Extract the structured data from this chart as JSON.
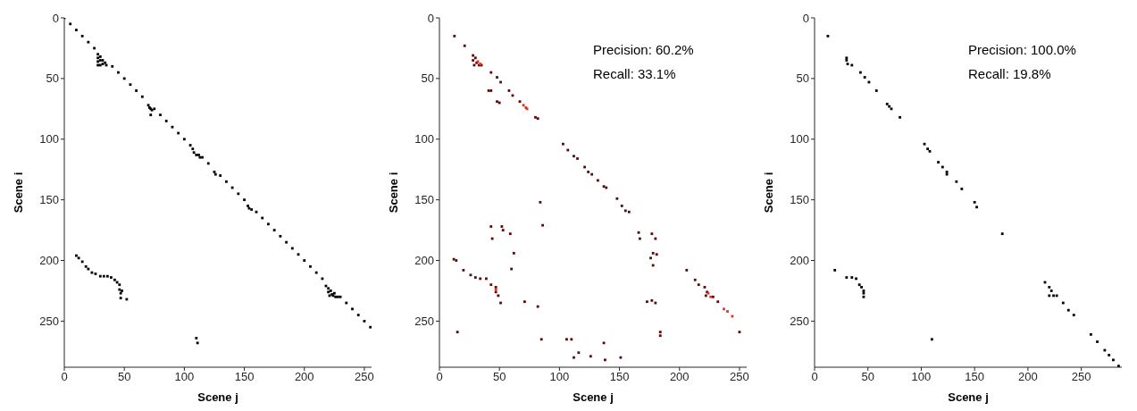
{
  "chart_data": [
    {
      "type": "scatter",
      "xlabel": "Scene j",
      "ylabel": "Scene i",
      "xlim": [
        0,
        256
      ],
      "ylim": [
        288,
        0
      ],
      "xticks": [
        0,
        50,
        100,
        150,
        200,
        250
      ],
      "yticks": [
        0,
        50,
        100,
        150,
        200,
        250
      ],
      "marker": "square",
      "series": [
        {
          "color": "#000000",
          "x": [
            0,
            5,
            10,
            15,
            20,
            25,
            40,
            45,
            50,
            55,
            60,
            65,
            75,
            80,
            85,
            90,
            95,
            100,
            105,
            115,
            120,
            130,
            135,
            140,
            145,
            150,
            160,
            165,
            170,
            175,
            180,
            185,
            190,
            195,
            200,
            205,
            210,
            215,
            230,
            235,
            240,
            245,
            250,
            255,
            28,
            28,
            28,
            30,
            30,
            32,
            32,
            34,
            35,
            30,
            28,
            70,
            71,
            72,
            73,
            72,
            107,
            108,
            110,
            112,
            113,
            125,
            126,
            153,
            154,
            156,
            218,
            220,
            220,
            222,
            223,
            225,
            226,
            228,
            221,
            224,
            10,
            12,
            15,
            18,
            20,
            23,
            26,
            30,
            33,
            36,
            39,
            42,
            44,
            46,
            46,
            47,
            47,
            48,
            52,
            110,
            111
          ],
          "values": [
            0,
            5,
            10,
            15,
            20,
            25,
            40,
            45,
            50,
            55,
            60,
            65,
            75,
            80,
            85,
            90,
            95,
            100,
            105,
            115,
            120,
            130,
            135,
            140,
            145,
            150,
            160,
            165,
            170,
            175,
            180,
            185,
            190,
            195,
            200,
            205,
            210,
            215,
            230,
            235,
            240,
            245,
            250,
            255,
            30,
            33,
            36,
            32,
            35,
            35,
            38,
            37,
            39,
            39,
            39,
            72,
            74,
            75,
            76,
            80,
            108,
            111,
            113,
            113,
            115,
            127,
            129,
            155,
            157,
            158,
            221,
            223,
            226,
            225,
            228,
            227,
            230,
            230,
            229,
            229,
            196,
            198,
            201,
            205,
            207,
            210,
            211,
            213,
            213,
            213,
            214,
            216,
            218,
            220,
            224,
            227,
            231,
            225,
            232,
            264,
            268
          ]
        }
      ]
    },
    {
      "type": "scatter",
      "xlabel": "Scene j",
      "ylabel": "Scene i",
      "xlim": [
        0,
        256
      ],
      "ylim": [
        288,
        0
      ],
      "xticks": [
        0,
        50,
        100,
        150,
        200,
        250
      ],
      "yticks": [
        0,
        50,
        100,
        150,
        200,
        250
      ],
      "marker": "square",
      "annotations": [
        "Precision: 60.2%",
        "Recall: 33.1%"
      ],
      "series": [
        {
          "color": "#5a0808",
          "x": [
            12.5,
            21,
            28,
            28,
            29,
            30,
            31,
            33,
            35,
            43,
            48,
            51,
            41,
            43,
            58,
            61,
            48,
            50,
            67,
            80,
            82,
            103,
            107,
            112,
            115,
            121,
            124,
            127,
            132,
            137,
            139,
            148,
            152,
            155,
            158,
            84,
            86,
            43,
            52,
            53,
            59,
            44,
            62,
            60,
            166,
            167,
            177,
            180,
            178,
            181,
            176,
            178,
            173,
            177,
            180,
            12,
            14,
            20,
            26,
            30,
            34,
            39,
            43,
            47,
            47,
            49,
            51,
            71,
            82,
            85,
            15,
            106,
            110,
            137,
            116,
            112,
            126,
            138,
            151,
            206,
            213,
            216,
            221,
            223,
            222,
            228,
            232,
            184,
            184,
            250
          ],
          "values": [
            15,
            23,
            31,
            35,
            39,
            33,
            37,
            39,
            39,
            45,
            49,
            53,
            60,
            60,
            60,
            64,
            69,
            70,
            69,
            82,
            83,
            104,
            109,
            114,
            116,
            123,
            127,
            129,
            134,
            139,
            140,
            149,
            155,
            159,
            160,
            152,
            171,
            172,
            172,
            175,
            178,
            182,
            194,
            207,
            177,
            182,
            178,
            182,
            194,
            195,
            198,
            204,
            234,
            233,
            235,
            199,
            200,
            208,
            212,
            214,
            215,
            215,
            220,
            222,
            226,
            229,
            235,
            234,
            238,
            265,
            259,
            265,
            265,
            268,
            276,
            280,
            279,
            282,
            280,
            208,
            216,
            220,
            222,
            226,
            229,
            230,
            234,
            259,
            262,
            259
          ]
        },
        {
          "color": "#e8301a",
          "x": [
            32,
            34,
            70,
            72,
            73,
            47,
            224,
            226,
            237,
            240,
            244
          ],
          "values": [
            36,
            38,
            72,
            74,
            75,
            224,
            227,
            230,
            240,
            242,
            246
          ]
        }
      ]
    },
    {
      "type": "scatter",
      "xlabel": "Scene j",
      "ylabel": "Scene i",
      "xlim": [
        0,
        288
      ],
      "ylim": [
        288,
        0
      ],
      "xticks": [
        0,
        50,
        100,
        150,
        200,
        250
      ],
      "yticks": [
        0,
        50,
        100,
        150,
        200,
        250
      ],
      "marker": "square",
      "annotations": [
        "Precision: 100.0%",
        "Recall: 19.8%"
      ],
      "series": [
        {
          "color": "#000000",
          "x": [
            12.5,
            30,
            30,
            31,
            35,
            43,
            47,
            51,
            58,
            68,
            70,
            72,
            80,
            103,
            106,
            108,
            116,
            120,
            124,
            124,
            133,
            138,
            150,
            152,
            176,
            19,
            30,
            35,
            39,
            42,
            44,
            46,
            46,
            46,
            110,
            216,
            220,
            222,
            220,
            224,
            227,
            233,
            238,
            243,
            259,
            265,
            272,
            276,
            280,
            285
          ],
          "values": [
            15,
            33,
            35,
            38,
            39,
            45,
            49,
            53,
            60,
            71,
            73,
            75,
            82,
            104,
            108,
            110,
            119,
            123,
            127,
            129,
            135,
            141,
            152,
            156,
            178,
            208,
            214,
            214,
            215,
            220,
            222,
            225,
            227,
            230,
            265,
            218,
            222,
            225,
            229,
            229,
            229,
            235,
            241,
            245,
            261,
            267,
            274,
            278,
            282,
            287
          ]
        }
      ]
    }
  ]
}
